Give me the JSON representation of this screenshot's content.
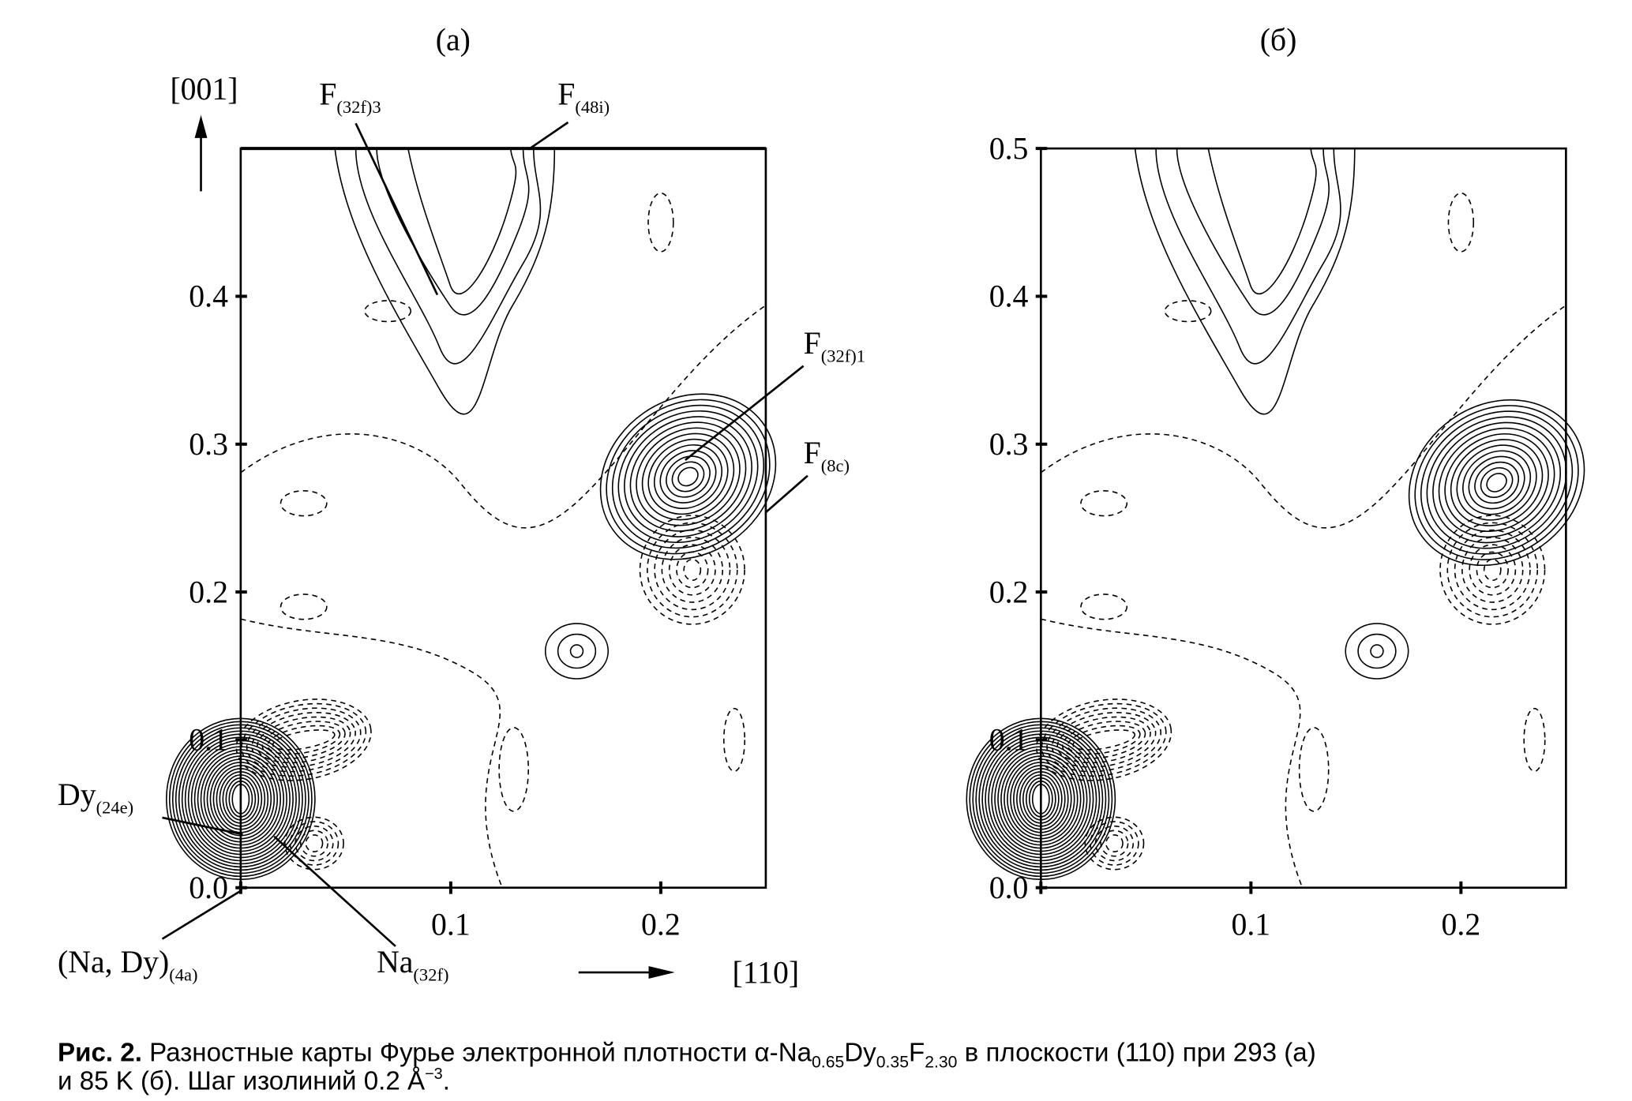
{
  "figure": {
    "caption_label": "Рис. 2.",
    "caption_line1_a": " Разностные карты Фурье электронной плотности α-Na",
    "sub1": "0.65",
    "dy": "Dy",
    "sub2": "0.35",
    "f": "F",
    "sub3": "2.30",
    "caption_line1_b": " в плоскости (110) при 293 (а)",
    "caption_line2": "и 85 K (б). Шаг изолиний 0.2 Å",
    "caption_sup": "−3",
    "caption_end": "."
  },
  "chart_data": [
    {
      "type": "contour",
      "panel_label": "(a)",
      "xlabel": "[110]",
      "ylabel": "[001]",
      "xlim": [
        0,
        0.25
      ],
      "ylim": [
        0,
        0.5
      ],
      "xticks": [
        "0.1",
        "0.2"
      ],
      "yticks": [
        "0.0",
        "0.1",
        "0.2",
        "0.3",
        "0.4"
      ],
      "contour_step": "0.2 Å−3",
      "line_styles": {
        "positive": "solid",
        "negative": "dashed"
      },
      "annotations": [
        {
          "text": "F",
          "sub": "(32f)3",
          "x": 0.095,
          "y": 0.39
        },
        {
          "text": "F",
          "sub": "(48i)",
          "x": 0.14,
          "y": 0.5
        },
        {
          "text": "F",
          "sub": "(32f)1",
          "x": 0.213,
          "y": 0.28
        },
        {
          "text": "F",
          "sub": "(8c)",
          "x": 0.25,
          "y": 0.25
        },
        {
          "text": "Dy",
          "sub": "(24e)",
          "x": 0.0,
          "y": 0.04
        },
        {
          "text": "(Na, Dy)",
          "sub": "(4a)",
          "x": 0.0,
          "y": 0.0
        },
        {
          "text": "Na",
          "sub": "(32f)",
          "x": 0.015,
          "y": 0.03
        }
      ]
    },
    {
      "type": "contour",
      "panel_label": "(б)",
      "xlim": [
        0,
        0.25
      ],
      "ylim": [
        0,
        0.5
      ],
      "xticks": [
        "0.1",
        "0.2"
      ],
      "yticks": [
        "0.0",
        "0.1",
        "0.2",
        "0.3",
        "0.4",
        "0.5"
      ],
      "line_styles": {
        "positive": "solid",
        "negative": "dashed"
      }
    }
  ]
}
